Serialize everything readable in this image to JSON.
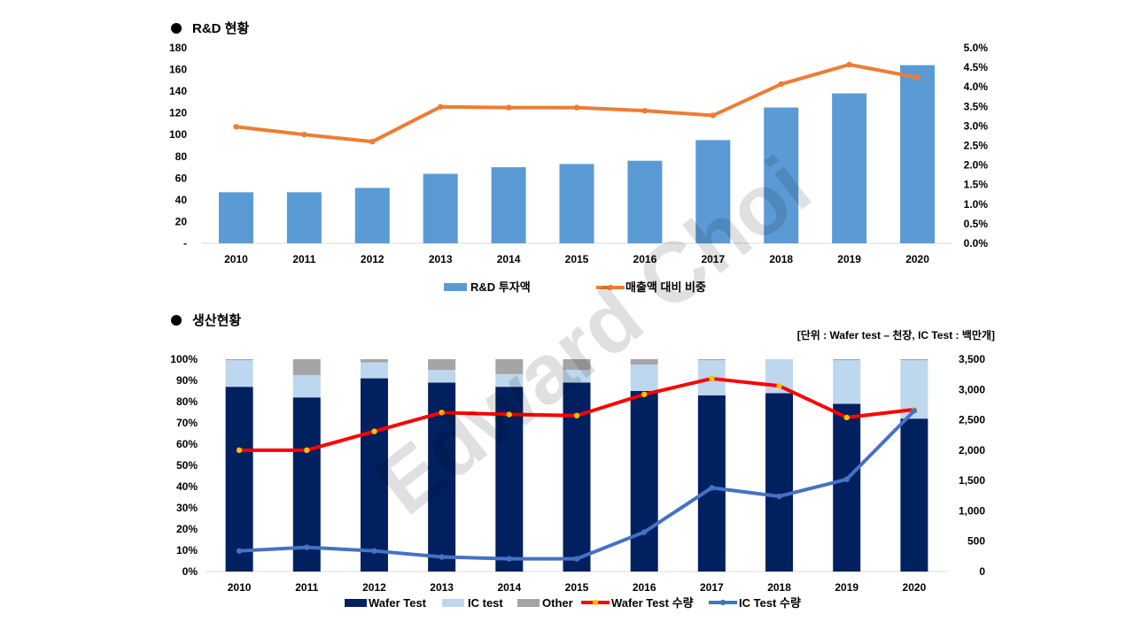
{
  "chart_data": [
    {
      "type": "bar+line",
      "title": "R&D 현황",
      "categories": [
        "2010",
        "2011",
        "2012",
        "2013",
        "2014",
        "2015",
        "2016",
        "2017",
        "2018",
        "2019",
        "2020"
      ],
      "y_left": {
        "ylim": [
          0,
          180
        ],
        "ticks": [
          0,
          20,
          40,
          60,
          80,
          100,
          120,
          140,
          160,
          180
        ],
        "tick_labels": [
          "-",
          "20",
          "40",
          "60",
          "80",
          "100",
          "120",
          "140",
          "160",
          "180"
        ]
      },
      "y_right": {
        "ylim": [
          0,
          5.0
        ],
        "ticks": [
          0,
          0.5,
          1.0,
          1.5,
          2.0,
          2.5,
          3.0,
          3.5,
          4.0,
          4.5,
          5.0
        ],
        "tick_labels": [
          "0.0%",
          "0.5%",
          "1.0%",
          "1.5%",
          "2.0%",
          "2.5%",
          "3.0%",
          "3.5%",
          "4.0%",
          "4.5%",
          "5.0%"
        ]
      },
      "series": [
        {
          "name": "R&D 투자액",
          "kind": "bar",
          "axis": "left",
          "color": "#5B9BD5",
          "values": [
            47,
            47,
            51,
            64,
            70,
            73,
            76,
            95,
            125,
            138,
            164
          ]
        },
        {
          "name": "매출액 대비 비중",
          "kind": "line",
          "axis": "right",
          "color": "#ED7D31",
          "values": [
            2.98,
            2.78,
            2.6,
            3.49,
            3.47,
            3.47,
            3.39,
            3.27,
            4.07,
            4.57,
            4.24
          ]
        }
      ],
      "legend": "bottom"
    },
    {
      "type": "stacked-bar+line",
      "title": "생산현황",
      "unit_note": "[단위 : Wafer test – 천장, IC Test : 백만개]",
      "categories": [
        "2010",
        "2011",
        "2012",
        "2013",
        "2014",
        "2015",
        "2016",
        "2017",
        "2018",
        "2019",
        "2020"
      ],
      "y_left": {
        "ylim": [
          0,
          100
        ],
        "ticks": [
          0,
          10,
          20,
          30,
          40,
          50,
          60,
          70,
          80,
          90,
          100
        ],
        "tick_labels": [
          "0%",
          "10%",
          "20%",
          "30%",
          "40%",
          "50%",
          "60%",
          "70%",
          "80%",
          "90%",
          "100%"
        ]
      },
      "y_right": {
        "ylim": [
          0,
          3500
        ],
        "ticks": [
          0,
          500,
          1000,
          1500,
          2000,
          2500,
          3000,
          3500
        ],
        "tick_labels": [
          "0",
          "500",
          "1,000",
          "1,500",
          "2,000",
          "2,500",
          "3,000",
          "3,500"
        ]
      },
      "series": [
        {
          "name": "Wafer Test",
          "kind": "bar",
          "axis": "left",
          "color": "#002060",
          "values": [
            87,
            82,
            91,
            89,
            87,
            89,
            85,
            83,
            84,
            79,
            72
          ]
        },
        {
          "name": "IC test",
          "kind": "bar",
          "axis": "left",
          "color": "#BDD7EE",
          "values": [
            12.5,
            10.5,
            7.5,
            6,
            6,
            6,
            12.5,
            16.5,
            16,
            20.5,
            27.5
          ]
        },
        {
          "name": "Other",
          "kind": "bar",
          "axis": "left",
          "color": "#A5A5A5",
          "values": [
            0.5,
            7.5,
            1.5,
            5,
            7,
            5,
            2.5,
            0.5,
            0,
            0.5,
            0.5
          ]
        },
        {
          "name": "Wafer Test 수량",
          "kind": "line",
          "axis": "right",
          "color": "#FF0000",
          "marker": "#FFC000",
          "values": [
            2000,
            2000,
            2310,
            2620,
            2590,
            2570,
            2920,
            3180,
            3060,
            2540,
            2670
          ]
        },
        {
          "name": "IC Test 수량",
          "kind": "line",
          "axis": "right",
          "color": "#4472C4",
          "marker": "#4472C4",
          "values": [
            340,
            400,
            340,
            240,
            210,
            210,
            650,
            1380,
            1240,
            1520,
            2650
          ]
        }
      ],
      "legend": "bottom"
    }
  ],
  "watermark": "Edward Choi"
}
